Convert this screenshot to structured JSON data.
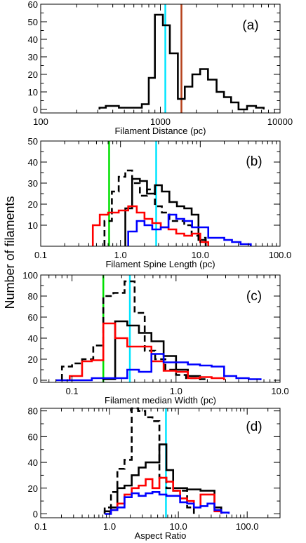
{
  "figure": {
    "ylabel": "Number of filaments"
  },
  "colors": {
    "black": "#000000",
    "red": "#ff0000",
    "blue": "#0000ff",
    "cyan": "#00e5ff",
    "green": "#00e000",
    "brown": "#b5401a"
  },
  "chart_data": [
    {
      "type": "histogram",
      "panel_label": "(a)",
      "xlabel": "Filament Distance (pc)",
      "xscale": "log",
      "xlim": [
        100,
        10000
      ],
      "ylim": [
        -2,
        60
      ],
      "xticks": [
        100,
        1000,
        10000
      ],
      "xtick_labels": [
        "100",
        "1000",
        "10000"
      ],
      "yticks": [
        0,
        10,
        20,
        30,
        40,
        50,
        60
      ],
      "ytick_labels": [
        "0",
        "10",
        "20",
        "30",
        "40",
        "50",
        "60"
      ],
      "series": [
        {
          "color": "black",
          "dashed": false,
          "edges": [
            310,
            350,
            450,
            600,
            700,
            800,
            900,
            1050,
            1200,
            1400,
            1600,
            1850,
            2150,
            2500,
            2950,
            3400,
            3900,
            4500,
            5300,
            6300,
            7300
          ],
          "values": [
            1,
            2,
            1,
            1,
            3,
            18,
            54,
            48,
            32,
            6,
            13,
            20,
            23,
            17,
            10,
            7,
            4,
            0,
            2,
            1
          ]
        }
      ],
      "vlines": [
        {
          "x": 1100,
          "color": "cyan"
        },
        {
          "x": 1500,
          "color": "brown"
        }
      ]
    },
    {
      "type": "histogram",
      "panel_label": "(b)",
      "xlabel": "Filament Spine Length (pc)",
      "xscale": "log",
      "xlim": [
        0.1,
        100
      ],
      "ylim": [
        0,
        50
      ],
      "xticks": [
        0.1,
        1,
        10,
        100
      ],
      "xtick_labels": [
        "0.1",
        "1.0",
        "10.0",
        "100.0"
      ],
      "yticks": [
        10,
        20,
        30,
        40,
        50
      ],
      "ytick_labels": [
        "10",
        "20",
        "30",
        "40",
        "50"
      ],
      "series": [
        {
          "color": "black",
          "dashed": true,
          "edges": [
            0.63,
            0.78,
            0.95,
            1.15,
            1.4,
            1.75,
            2.15,
            2.7,
            3.3,
            4.1,
            5.1,
            6.3,
            7.8,
            9.5,
            11.7
          ],
          "values": [
            12,
            26,
            33,
            36,
            30,
            24,
            27,
            19,
            16,
            12,
            12,
            10,
            5,
            4
          ]
        },
        {
          "color": "black",
          "dashed": false,
          "edges": [
            1.15,
            1.4,
            1.75,
            2.15,
            2.7,
            3.3,
            4.1,
            5.1,
            6.3,
            7.8,
            9.5,
            11.7
          ],
          "values": [
            18,
            32,
            31,
            25,
            29,
            26,
            21,
            19,
            18,
            15,
            3
          ]
        },
        {
          "color": "red",
          "dashed": false,
          "edges": [
            0.45,
            0.55,
            0.7,
            0.95,
            1.25,
            1.6,
            2.0,
            2.5,
            3.2,
            4.0,
            5.0,
            6.3,
            7.9,
            10.0,
            12.6
          ],
          "values": [
            10,
            15,
            16,
            17,
            19,
            16,
            13,
            11,
            9,
            8,
            6,
            5,
            6,
            2
          ]
        },
        {
          "color": "blue",
          "dashed": false,
          "edges": [
            1.25,
            1.6,
            2.0,
            2.5,
            3.2,
            4.0,
            5.0,
            6.3,
            7.9,
            10.0,
            12.6,
            16.0,
            20.0,
            25.0,
            32.0,
            43.0
          ],
          "values": [
            7,
            12,
            10,
            8,
            9,
            15,
            13,
            12,
            9,
            9,
            4,
            4,
            3,
            2,
            1
          ]
        }
      ],
      "vlines": [
        {
          "x": 0.72,
          "color": "green"
        },
        {
          "x": 2.8,
          "color": "cyan"
        }
      ]
    },
    {
      "type": "histogram",
      "panel_label": "(c)",
      "xlabel": "Filament median Width (pc)",
      "xscale": "log",
      "xlim": [
        0.05,
        10
      ],
      "ylim": [
        -2,
        100
      ],
      "xticks": [
        0.1,
        1,
        10
      ],
      "xtick_labels": [
        "0.1",
        "1.0",
        "10.0"
      ],
      "yticks": [
        0,
        20,
        40,
        60,
        80,
        100
      ],
      "ytick_labels": [
        "0",
        "20",
        "40",
        "60",
        "80",
        "100"
      ],
      "series": [
        {
          "color": "black",
          "dashed": true,
          "edges": [
            0.08,
            0.1,
            0.125,
            0.16,
            0.2,
            0.25,
            0.32,
            0.4,
            0.5,
            0.63,
            0.79,
            1.0,
            1.25,
            1.6,
            2.0
          ],
          "values": [
            13,
            16,
            20,
            33,
            80,
            83,
            94,
            64,
            28,
            20,
            10,
            5,
            2,
            1
          ]
        },
        {
          "color": "black",
          "dashed": false,
          "edges": [
            0.2,
            0.26,
            0.34,
            0.44,
            0.58,
            0.76,
            1.0,
            1.3,
            1.7
          ],
          "values": [
            1,
            56,
            52,
            45,
            37,
            23,
            10,
            4
          ]
        },
        {
          "color": "red",
          "dashed": false,
          "edges": [
            0.095,
            0.125,
            0.155,
            0.2,
            0.26,
            0.34,
            0.44,
            0.58,
            0.76,
            1.0,
            1.3,
            1.7,
            2.2,
            2.9
          ],
          "values": [
            4,
            18,
            19,
            54,
            40,
            32,
            32,
            18,
            9,
            8,
            2,
            3,
            2
          ]
        },
        {
          "color": "blue",
          "dashed": false,
          "edges": [
            0.07,
            0.1,
            0.155,
            0.26,
            0.34,
            0.44,
            0.58,
            0.76,
            1.0,
            1.3,
            1.7,
            2.2,
            2.9,
            3.8,
            5.0,
            6.5
          ],
          "values": [
            0,
            0,
            2,
            2,
            10,
            8,
            25,
            17,
            17,
            15,
            14,
            13,
            4,
            2,
            1
          ]
        }
      ],
      "vlines": [
        {
          "x": 0.2,
          "color": "green"
        },
        {
          "x": 0.36,
          "color": "cyan"
        }
      ]
    },
    {
      "type": "histogram",
      "panel_label": "(d)",
      "xlabel": "Aspect Ratio",
      "xscale": "log",
      "xlim": [
        0.1,
        300
      ],
      "ylim": [
        -3,
        82
      ],
      "xticks": [
        0.1,
        1,
        10,
        100
      ],
      "xtick_labels": [
        "0.1",
        "1.0",
        "10.0",
        "100.0"
      ],
      "yticks": [
        0,
        20,
        40,
        60,
        80
      ],
      "ytick_labels": [
        "0",
        "20",
        "40",
        "60",
        "80"
      ],
      "series": [
        {
          "color": "black",
          "dashed": true,
          "edges": [
            0.85,
            1.05,
            1.3,
            1.65,
            2.1,
            2.6,
            3.3,
            4.2,
            5.3,
            6.7,
            8.4,
            10.6,
            13.4,
            16.8
          ],
          "values": [
            5,
            17,
            35,
            42,
            82,
            80,
            75,
            72,
            28,
            20,
            18,
            18,
            5
          ]
        },
        {
          "color": "black",
          "dashed": false,
          "edges": [
            0.85,
            1.05,
            1.3,
            1.65,
            2.1,
            2.65,
            3.35,
            4.2,
            5.3,
            6.7,
            8.4,
            10.6,
            13.4,
            16.8,
            21.0,
            26.5,
            33.5,
            42.0
          ],
          "values": [
            2,
            5,
            20,
            22,
            30,
            36,
            40,
            40,
            54,
            34,
            20,
            20,
            19,
            19,
            18,
            18,
            5
          ]
        },
        {
          "color": "red",
          "dashed": false,
          "edges": [
            1.05,
            1.3,
            1.65,
            2.1,
            2.65,
            3.35,
            4.2,
            5.3,
            6.7,
            8.4,
            10.6,
            13.4,
            16.8,
            21.0,
            26.5,
            33.5,
            42.0
          ],
          "values": [
            3,
            8,
            15,
            20,
            22,
            27,
            20,
            28,
            25,
            18,
            12,
            10,
            5,
            15,
            15,
            2
          ]
        },
        {
          "color": "blue",
          "dashed": false,
          "edges": [
            0.85,
            1.05,
            1.3,
            1.65,
            2.1,
            2.65,
            3.35,
            4.2,
            5.3,
            6.7,
            8.4,
            10.6,
            13.4,
            16.8,
            21.0,
            26.5,
            33.5,
            42.0,
            54.0
          ],
          "values": [
            0,
            3,
            5,
            13,
            16,
            14,
            16,
            17,
            15,
            14,
            14,
            9,
            8,
            5,
            6,
            8,
            3,
            1
          ]
        }
      ],
      "vlines": [
        {
          "x": 6.6,
          "color": "cyan"
        }
      ]
    }
  ]
}
